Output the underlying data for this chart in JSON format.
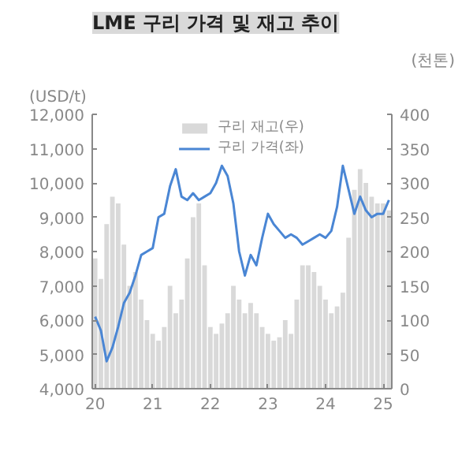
{
  "chart_data": {
    "type": "line",
    "title": "LME 구리 가격 및 재고 추이",
    "ylabel": "(USD/t)",
    "y2label": "(천톤)",
    "x": [
      2020.0,
      2020.1,
      2020.2,
      2020.3,
      2020.4,
      2020.5,
      2020.6,
      2020.7,
      2020.8,
      2020.9,
      2021.0,
      2021.1,
      2021.2,
      2021.3,
      2021.4,
      2021.5,
      2021.6,
      2021.7,
      2021.8,
      2021.9,
      2022.0,
      2022.1,
      2022.2,
      2022.3,
      2022.4,
      2022.5,
      2022.6,
      2022.7,
      2022.8,
      2022.9,
      2023.0,
      2023.1,
      2023.2,
      2023.3,
      2023.4,
      2023.5,
      2023.6,
      2023.7,
      2023.8,
      2023.9,
      2024.0,
      2024.1,
      2024.2,
      2024.3,
      2024.4,
      2024.5,
      2024.6,
      2024.7,
      2024.8,
      2024.9,
      2025.0,
      2025.1
    ],
    "series": [
      {
        "name": "구리 재고(우)",
        "type": "bar",
        "axis": "y2",
        "color": "#d9d9d9",
        "values": [
          190,
          160,
          240,
          280,
          270,
          210,
          150,
          170,
          130,
          100,
          80,
          70,
          90,
          150,
          110,
          130,
          190,
          250,
          270,
          180,
          90,
          80,
          95,
          110,
          150,
          130,
          110,
          125,
          110,
          90,
          80,
          70,
          75,
          100,
          80,
          130,
          180,
          180,
          170,
          150,
          130,
          110,
          120,
          140,
          220,
          290,
          320,
          300,
          280,
          270,
          270,
          260
        ]
      },
      {
        "name": "구리 가격(좌)",
        "color": "#4a86d4",
        "values": [
          6100,
          5700,
          4800,
          5200,
          5800,
          6500,
          6800,
          7300,
          7900,
          8000,
          8100,
          9000,
          9100,
          9900,
          10400,
          9600,
          9500,
          9700,
          9500,
          9600,
          9700,
          10000,
          10500,
          10200,
          9400,
          8000,
          7300,
          7900,
          7600,
          8400,
          9100,
          8800,
          8600,
          8400,
          8500,
          8400,
          8200,
          8300,
          8400,
          8500,
          8400,
          8600,
          9300,
          10500,
          9800,
          9100,
          9600,
          9200,
          9000,
          9100,
          9100,
          9500
        ]
      }
    ],
    "xlim": [
      2019.95,
      2025.15
    ],
    "xticks": [
      {
        "value": 2020,
        "label": "20"
      },
      {
        "value": 2021,
        "label": "21"
      },
      {
        "value": 2022,
        "label": "22"
      },
      {
        "value": 2023,
        "label": "23"
      },
      {
        "value": 2024,
        "label": "24"
      },
      {
        "value": 2025,
        "label": "25"
      }
    ],
    "ylim": [
      4000,
      12000
    ],
    "yticks": [
      {
        "value": 4000,
        "label": "4,000"
      },
      {
        "value": 5000,
        "label": "5,000"
      },
      {
        "value": 6000,
        "label": "6,000"
      },
      {
        "value": 7000,
        "label": "7,000"
      },
      {
        "value": 8000,
        "label": "8,000"
      },
      {
        "value": 9000,
        "label": "9,000"
      },
      {
        "value": 10000,
        "label": "10,000"
      },
      {
        "value": 11000,
        "label": "11,000"
      },
      {
        "value": 12000,
        "label": "12,000"
      }
    ],
    "y2lim": [
      0,
      400
    ],
    "y2ticks": [
      0,
      50,
      100,
      150,
      200,
      250,
      300,
      350,
      400
    ],
    "grid": false,
    "legend": "top"
  }
}
